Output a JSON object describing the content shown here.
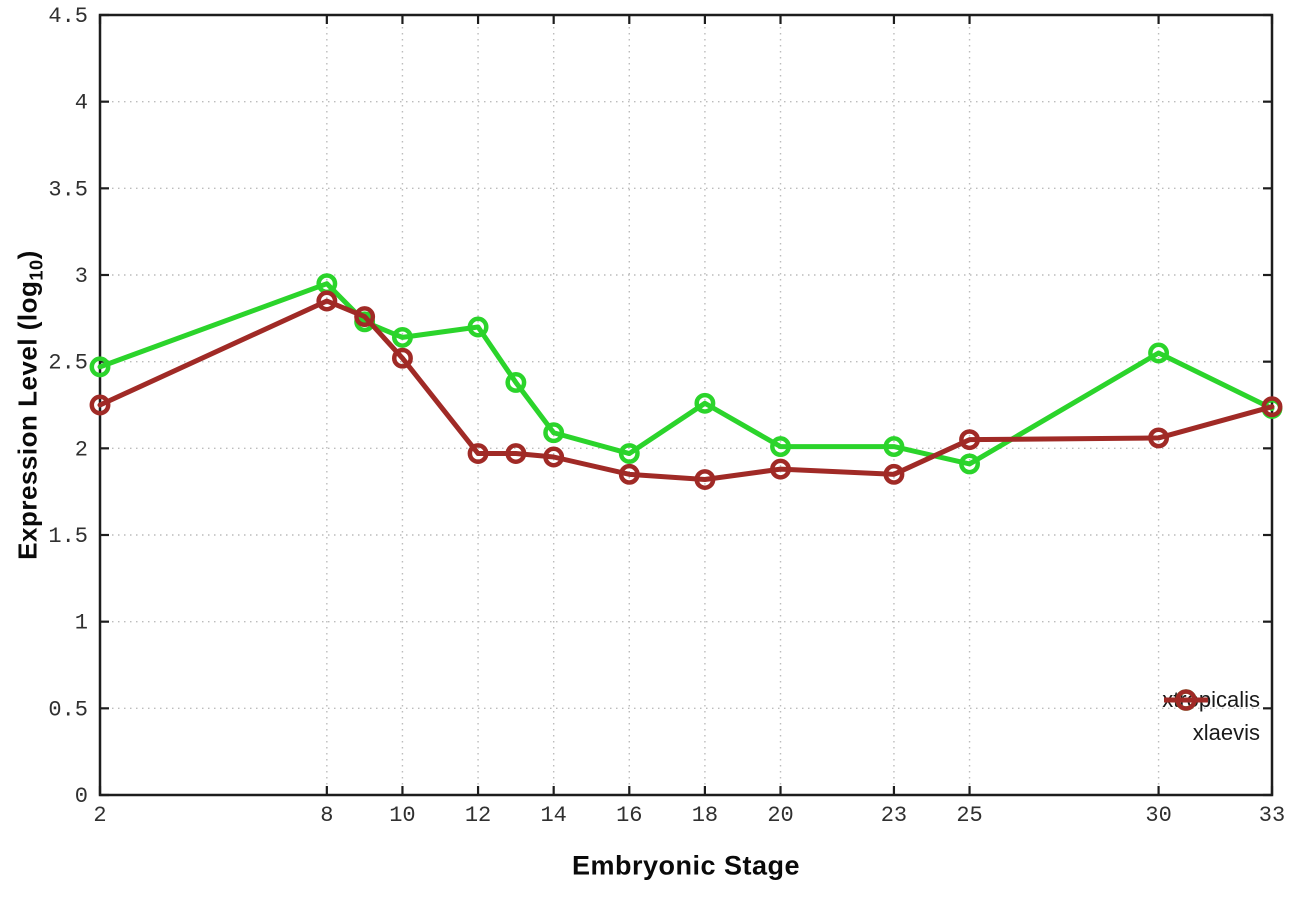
{
  "labels": {
    "xlabel": "Embryonic Stage",
    "ylabel_main": "Expression Level (log",
    "ylabel_sub": "10",
    "ylabel_end": ")"
  },
  "chart_data": {
    "type": "line",
    "title": "",
    "xlabel": "Embryonic Stage",
    "ylabel": "Expression Level (log10)",
    "xlim": [
      2,
      33
    ],
    "ylim": [
      0,
      4.5
    ],
    "x_ticks": [
      2,
      8,
      10,
      12,
      14,
      16,
      18,
      20,
      23,
      25,
      30,
      33
    ],
    "y_ticks": [
      0,
      0.5,
      1,
      1.5,
      2,
      2.5,
      3,
      3.5,
      4,
      4.5
    ],
    "grid": true,
    "grid_style": "dotted",
    "legend_position": "bottom-right",
    "x": [
      2,
      8,
      9,
      10,
      12,
      13,
      14,
      16,
      18,
      20,
      23,
      25,
      30,
      33
    ],
    "series": [
      {
        "name": "xtropicalis",
        "color": "#2bd42b",
        "marker": "open-circle",
        "values": [
          2.47,
          2.95,
          2.73,
          2.64,
          2.7,
          2.38,
          2.09,
          1.97,
          2.26,
          2.01,
          2.01,
          1.91,
          2.55,
          2.23
        ]
      },
      {
        "name": "xlaevis",
        "color": "#a02a26",
        "marker": "open-circle",
        "values": [
          2.25,
          2.85,
          2.76,
          2.52,
          1.97,
          1.97,
          1.95,
          1.85,
          1.82,
          1.88,
          1.85,
          2.05,
          2.06,
          2.24
        ]
      }
    ]
  },
  "style": {
    "background": "#ffffff",
    "axis_color": "#1d1d1d",
    "grid_color": "#bcbcbc",
    "tick_label_color": "#303030"
  }
}
